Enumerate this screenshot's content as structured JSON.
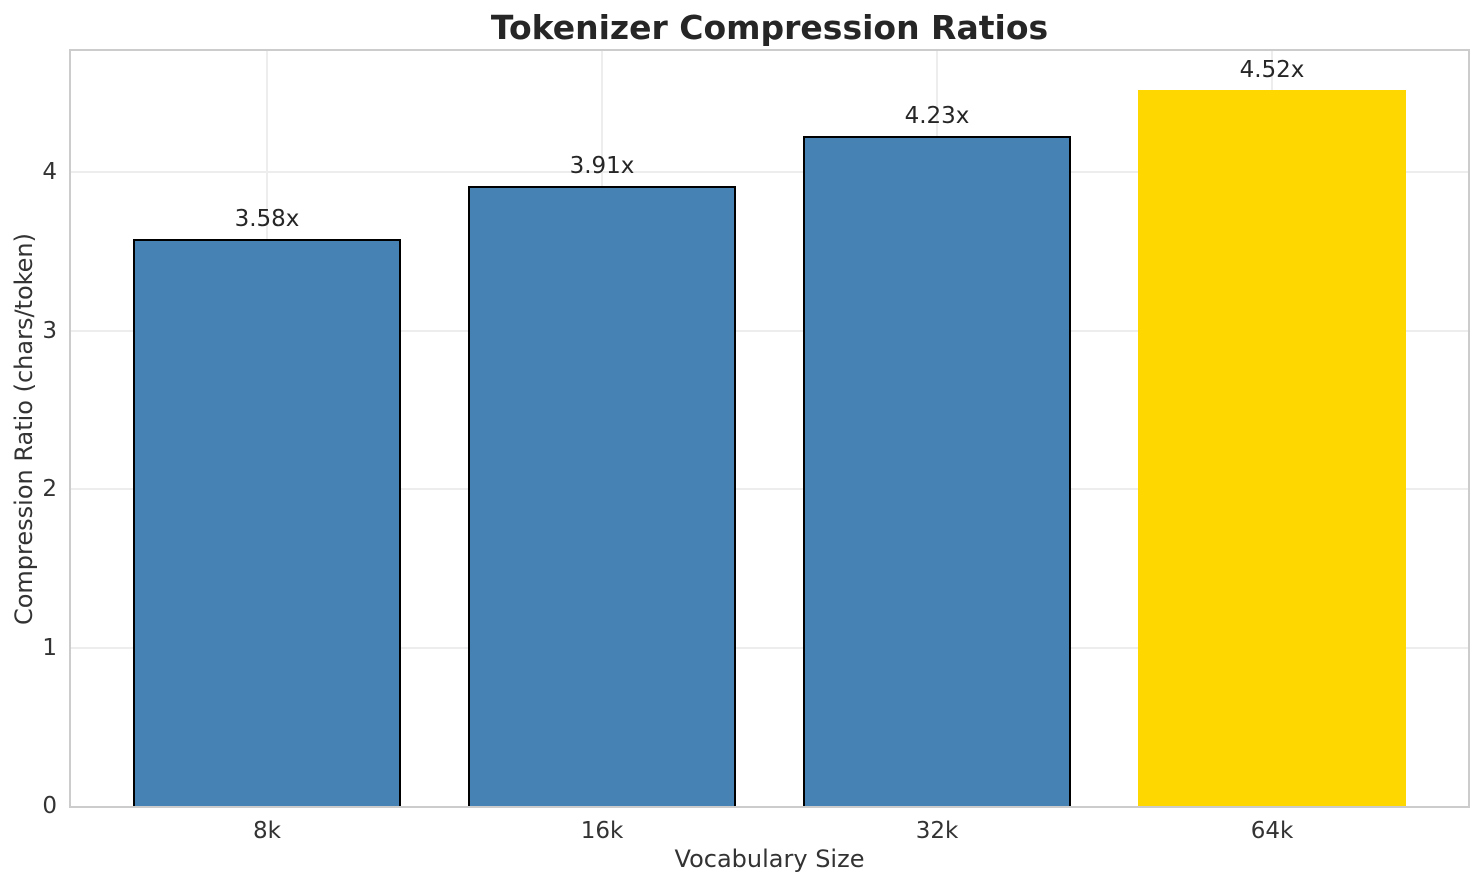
{
  "chart_data": {
    "type": "bar",
    "title": "Tokenizer Compression Ratios",
    "xlabel": "Vocabulary Size",
    "ylabel": "Compression Ratio (chars/token)",
    "categories": [
      "8k",
      "16k",
      "32k",
      "64k"
    ],
    "values": [
      3.58,
      3.91,
      4.23,
      4.52
    ],
    "value_labels": [
      "3.58x",
      "3.91x",
      "4.23x",
      "4.52x"
    ],
    "bar_colors": [
      "#4682B4",
      "#4682B4",
      "#4682B4",
      "#FFD700"
    ],
    "bar_edges": [
      true,
      true,
      true,
      false
    ],
    "yticks": [
      "0",
      "1",
      "2",
      "3",
      "4"
    ],
    "ytick_values": [
      0,
      1,
      2,
      3,
      4
    ],
    "ylim": [
      0,
      4.764
    ],
    "grid": "on",
    "legend": "none",
    "colors": {
      "series": "#4682B4",
      "highlight": "#FFD700",
      "bar_edge": "#000000",
      "grid": "#ededed",
      "spine": "#cccccc",
      "text": "#262626"
    }
  }
}
